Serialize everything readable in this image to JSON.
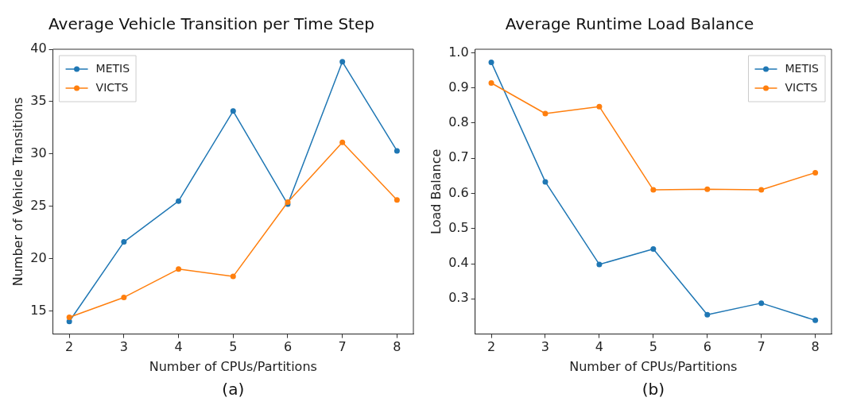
{
  "chart_data": [
    {
      "type": "line",
      "title": "Average Vehicle Transition per Time Step",
      "xlabel": "Number of CPUs/Partitions",
      "ylabel": "Number of Vehicle Transitions",
      "x": [
        2,
        3,
        4,
        5,
        6,
        7,
        8
      ],
      "series": [
        {
          "name": "METIS",
          "color": "#1f77b4",
          "values": [
            14.0,
            21.6,
            25.5,
            34.1,
            25.2,
            38.8,
            30.3
          ]
        },
        {
          "name": "VICTS",
          "color": "#ff7f0e",
          "values": [
            14.4,
            16.3,
            19.0,
            18.3,
            25.4,
            31.1,
            25.6
          ]
        }
      ],
      "xlim": [
        1.7,
        8.3
      ],
      "xticks": [
        2,
        3,
        4,
        5,
        6,
        7,
        8
      ],
      "ylim": [
        12.8,
        40
      ],
      "yticks": [
        15,
        20,
        25,
        30,
        35,
        40
      ],
      "grid": false,
      "legend": "top left",
      "marker": "circle",
      "line_style": "solid",
      "annotations": [
        "(a)"
      ]
    },
    {
      "type": "line",
      "title": "Average Runtime Load Balance",
      "xlabel": "Number of CPUs/Partitions",
      "ylabel": "Load Balance",
      "x": [
        2,
        3,
        4,
        5,
        6,
        7,
        8
      ],
      "series": [
        {
          "name": "METIS",
          "color": "#1f77b4",
          "values": [
            0.973,
            0.633,
            0.398,
            0.442,
            0.255,
            0.288,
            0.239
          ]
        },
        {
          "name": "VICTS",
          "color": "#ff7f0e",
          "values": [
            0.914,
            0.827,
            0.847,
            0.61,
            0.612,
            0.61,
            0.659
          ]
        }
      ],
      "xlim": [
        1.7,
        8.3
      ],
      "xticks": [
        2,
        3,
        4,
        5,
        6,
        7,
        8
      ],
      "ylim": [
        0.2,
        1.01
      ],
      "yticks": [
        {
          "value": 0.3,
          "label": "0.3"
        },
        {
          "value": 0.4,
          "label": "0.4"
        },
        {
          "value": 0.5,
          "label": "0.5"
        },
        {
          "value": 0.6,
          "label": "0.6"
        },
        {
          "value": 0.7,
          "label": "0.7"
        },
        {
          "value": 0.8,
          "label": "0.8"
        },
        {
          "value": 0.9,
          "label": "0.9"
        },
        {
          "value": 1.0,
          "label": "1.0"
        }
      ],
      "grid": false,
      "legend": "top right",
      "marker": "circle",
      "line_style": "solid",
      "annotations": [
        "(b)"
      ]
    }
  ]
}
